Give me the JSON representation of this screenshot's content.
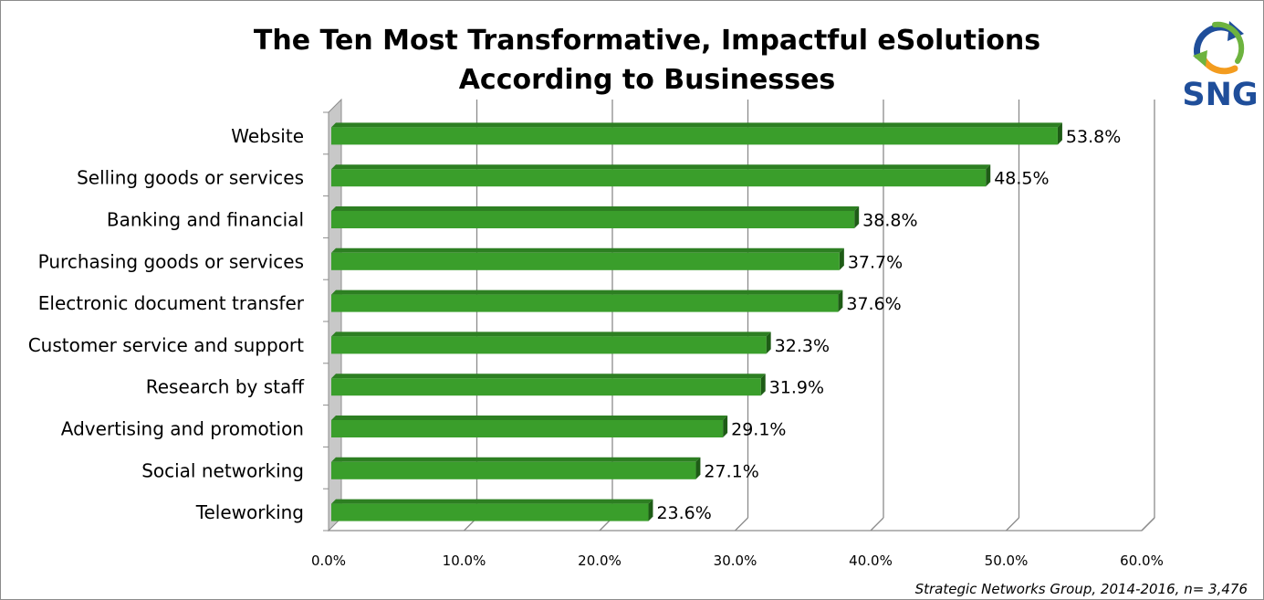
{
  "chart_data": {
    "type": "bar",
    "orientation": "horizontal",
    "title": "The Ten Most Transformative, Impactful eSolutions",
    "subtitle": "According to Businesses",
    "categories": [
      "Website",
      "Selling goods or services",
      "Banking and financial",
      "Purchasing goods or services",
      "Electronic document transfer",
      "Customer service and support",
      "Research by staff",
      "Advertising and promotion",
      "Social networking",
      "Teleworking"
    ],
    "values": [
      53.8,
      48.5,
      38.8,
      37.7,
      37.6,
      32.3,
      31.9,
      29.1,
      27.1,
      23.6
    ],
    "value_labels": [
      "53.8%",
      "48.5%",
      "38.8%",
      "37.7%",
      "37.6%",
      "32.3%",
      "31.9%",
      "29.1%",
      "27.1%",
      "23.6%"
    ],
    "xlim": [
      0,
      60
    ],
    "x_ticks": [
      0,
      10,
      20,
      30,
      40,
      50,
      60
    ],
    "x_tick_labels": [
      "0.0%",
      "10.0%",
      "20.0%",
      "30.0%",
      "40.0%",
      "50.0%",
      "60.0%"
    ],
    "xlabel": "",
    "ylabel": "",
    "grid": true,
    "legend": "none",
    "bar_color": "#3a9e2b",
    "source_note": "Strategic Networks Group, 2014-2016, n= 3,476"
  },
  "logo": {
    "text": "SNG",
    "icon": "sng-logo-arrows-icon",
    "colors": {
      "blue": "#1f4e9a",
      "green": "#6db33f",
      "orange": "#f39c1f"
    }
  }
}
